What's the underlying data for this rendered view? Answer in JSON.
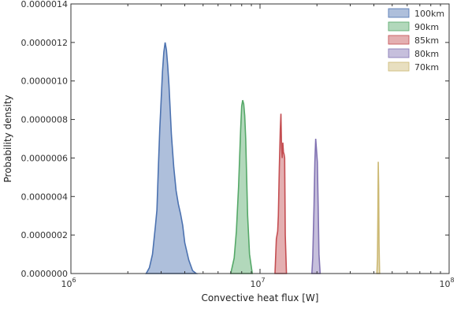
{
  "chart_data": {
    "type": "area",
    "xlabel": "Convective heat flux [W]",
    "ylabel": "Probability density",
    "x_scale": "log",
    "xlim": [
      1000000,
      100000000
    ],
    "ylim": [
      0,
      1.4e-06
    ],
    "x_ticks": [
      {
        "value": 1000000,
        "base": "10",
        "exp": "6"
      },
      {
        "value": 10000000,
        "base": "10",
        "exp": "7"
      },
      {
        "value": 100000000,
        "base": "10",
        "exp": "8"
      }
    ],
    "y_ticks": [
      0,
      2e-07,
      4e-07,
      6e-07,
      8e-07,
      1e-06,
      1.2e-06,
      1.4e-06
    ],
    "y_tick_labels": [
      "0.0000000",
      "0.0000002",
      "0.0000004",
      "0.0000006",
      "0.0000008",
      "0.0000010",
      "0.0000012",
      "0.0000014"
    ],
    "legend_position": "top-right",
    "series": [
      {
        "name": "100km",
        "color": "#4c72b0",
        "points": [
          [
            2500000,
            0
          ],
          [
            2600000,
            3e-08
          ],
          [
            2700000,
            1e-07
          ],
          [
            2800000,
            2.5e-07
          ],
          [
            2850000,
            3.3e-07
          ],
          [
            2900000,
            5.5e-07
          ],
          [
            2950000,
            7.5e-07
          ],
          [
            3000000,
            9e-07
          ],
          [
            3050000,
            1.05e-06
          ],
          [
            3100000,
            1.15e-06
          ],
          [
            3150000,
            1.2e-06
          ],
          [
            3200000,
            1.16e-06
          ],
          [
            3250000,
            1.08e-06
          ],
          [
            3300000,
            9.8e-07
          ],
          [
            3350000,
            8.5e-07
          ],
          [
            3400000,
            7.2e-07
          ],
          [
            3500000,
            5.5e-07
          ],
          [
            3600000,
            4.3e-07
          ],
          [
            3700000,
            3.6e-07
          ],
          [
            3800000,
            3.1e-07
          ],
          [
            3900000,
            2.5e-07
          ],
          [
            4000000,
            1.6e-07
          ],
          [
            4200000,
            7e-08
          ],
          [
            4400000,
            1.5e-08
          ],
          [
            4600000,
            0
          ]
        ]
      },
      {
        "name": "90km",
        "color": "#55a868",
        "points": [
          [
            7000000,
            0
          ],
          [
            7300000,
            8e-08
          ],
          [
            7500000,
            2.2e-07
          ],
          [
            7700000,
            4.5e-07
          ],
          [
            7900000,
            7.5e-07
          ],
          [
            8000000,
            8.7e-07
          ],
          [
            8100000,
            9e-07
          ],
          [
            8200000,
            8.8e-07
          ],
          [
            8300000,
            8.2e-07
          ],
          [
            8400000,
            7e-07
          ],
          [
            8500000,
            5e-07
          ],
          [
            8600000,
            3e-07
          ],
          [
            8800000,
            1e-07
          ],
          [
            9100000,
            0
          ]
        ]
      },
      {
        "name": "85km",
        "color": "#c44e52",
        "points": [
          [
            12000000,
            0
          ],
          [
            12200000,
            1.8e-07
          ],
          [
            12400000,
            2.2e-07
          ],
          [
            12500000,
            3e-07
          ],
          [
            12650000,
            5.5e-07
          ],
          [
            12800000,
            7.5e-07
          ],
          [
            12900000,
            8.3e-07
          ],
          [
            13000000,
            6.5e-07
          ],
          [
            13100000,
            6e-07
          ],
          [
            13200000,
            6.8e-07
          ],
          [
            13300000,
            6.3e-07
          ],
          [
            13400000,
            6.2e-07
          ],
          [
            13500000,
            6e-07
          ],
          [
            13600000,
            2e-07
          ],
          [
            13800000,
            0
          ]
        ]
      },
      {
        "name": "80km",
        "color": "#8172b2",
        "points": [
          [
            18800000,
            0
          ],
          [
            19000000,
            8e-08
          ],
          [
            19300000,
            3.5e-07
          ],
          [
            19500000,
            5.8e-07
          ],
          [
            19700000,
            7e-07
          ],
          [
            19900000,
            6.4e-07
          ],
          [
            20100000,
            5.8e-07
          ],
          [
            20300000,
            3.5e-07
          ],
          [
            20500000,
            1e-07
          ],
          [
            20800000,
            0
          ]
        ]
      },
      {
        "name": "70km",
        "color": "#ccb974",
        "points": [
          [
            41500000,
            0
          ],
          [
            41800000,
            8e-08
          ],
          [
            42000000,
            3e-07
          ],
          [
            42200000,
            5.8e-07
          ],
          [
            42400000,
            4.5e-07
          ],
          [
            42600000,
            1.5e-07
          ],
          [
            42900000,
            0
          ]
        ]
      }
    ]
  }
}
